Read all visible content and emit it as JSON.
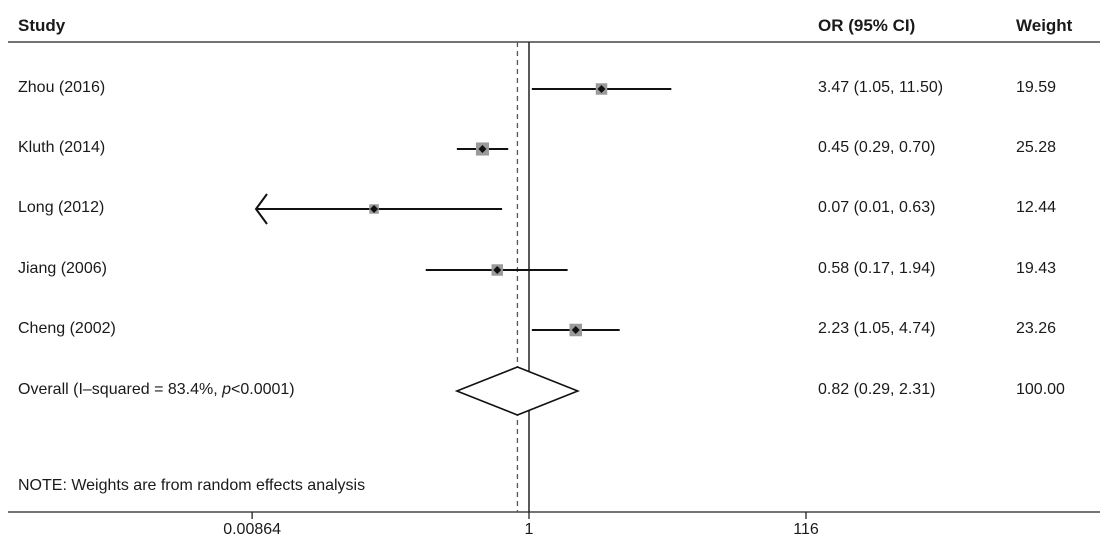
{
  "chart_data": {
    "type": "forest",
    "scale": "log",
    "headers": {
      "study": "Study",
      "or": "OR (95% CI)",
      "weight": "Weight"
    },
    "studies": [
      {
        "label": "Zhou (2016)",
        "or": 3.47,
        "lower": 1.05,
        "upper": 11.5,
        "ci_text": "3.47 (1.05, 11.50)",
        "weight": "19.59"
      },
      {
        "label": "Kluth (2014)",
        "or": 0.45,
        "lower": 0.29,
        "upper": 0.7,
        "ci_text": "0.45 (0.29, 0.70)",
        "weight": "25.28"
      },
      {
        "label": "Long (2012)",
        "or": 0.07,
        "lower": 0.01,
        "upper": 0.63,
        "ci_text": "0.07 (0.01, 0.63)",
        "weight": "12.44",
        "lower_arrow": true
      },
      {
        "label": "Jiang (2006)",
        "or": 0.58,
        "lower": 0.17,
        "upper": 1.94,
        "ci_text": "0.58 (0.17, 1.94)",
        "weight": "19.43"
      },
      {
        "label": "Cheng (2002)",
        "or": 2.23,
        "lower": 1.05,
        "upper": 4.74,
        "ci_text": "2.23 (1.05, 4.74)",
        "weight": "23.26"
      }
    ],
    "overall": {
      "label_prefix": "Overall (I–squared = 83.4%, ",
      "label_p": "p",
      "label_suffix": "<0.0001)",
      "or": 0.82,
      "lower": 0.29,
      "upper": 2.31,
      "ci_text": "0.82 (0.29, 2.31)",
      "weight": "100.00"
    },
    "note": "NOTE: Weights are from random effects analysis",
    "null_value": 1,
    "xticks": [
      {
        "value": 0.00864,
        "label": "0.00864"
      },
      {
        "value": 1,
        "label": "1"
      },
      {
        "value": 116,
        "label": "116"
      }
    ],
    "xlim": [
      0.00864,
      116
    ]
  }
}
